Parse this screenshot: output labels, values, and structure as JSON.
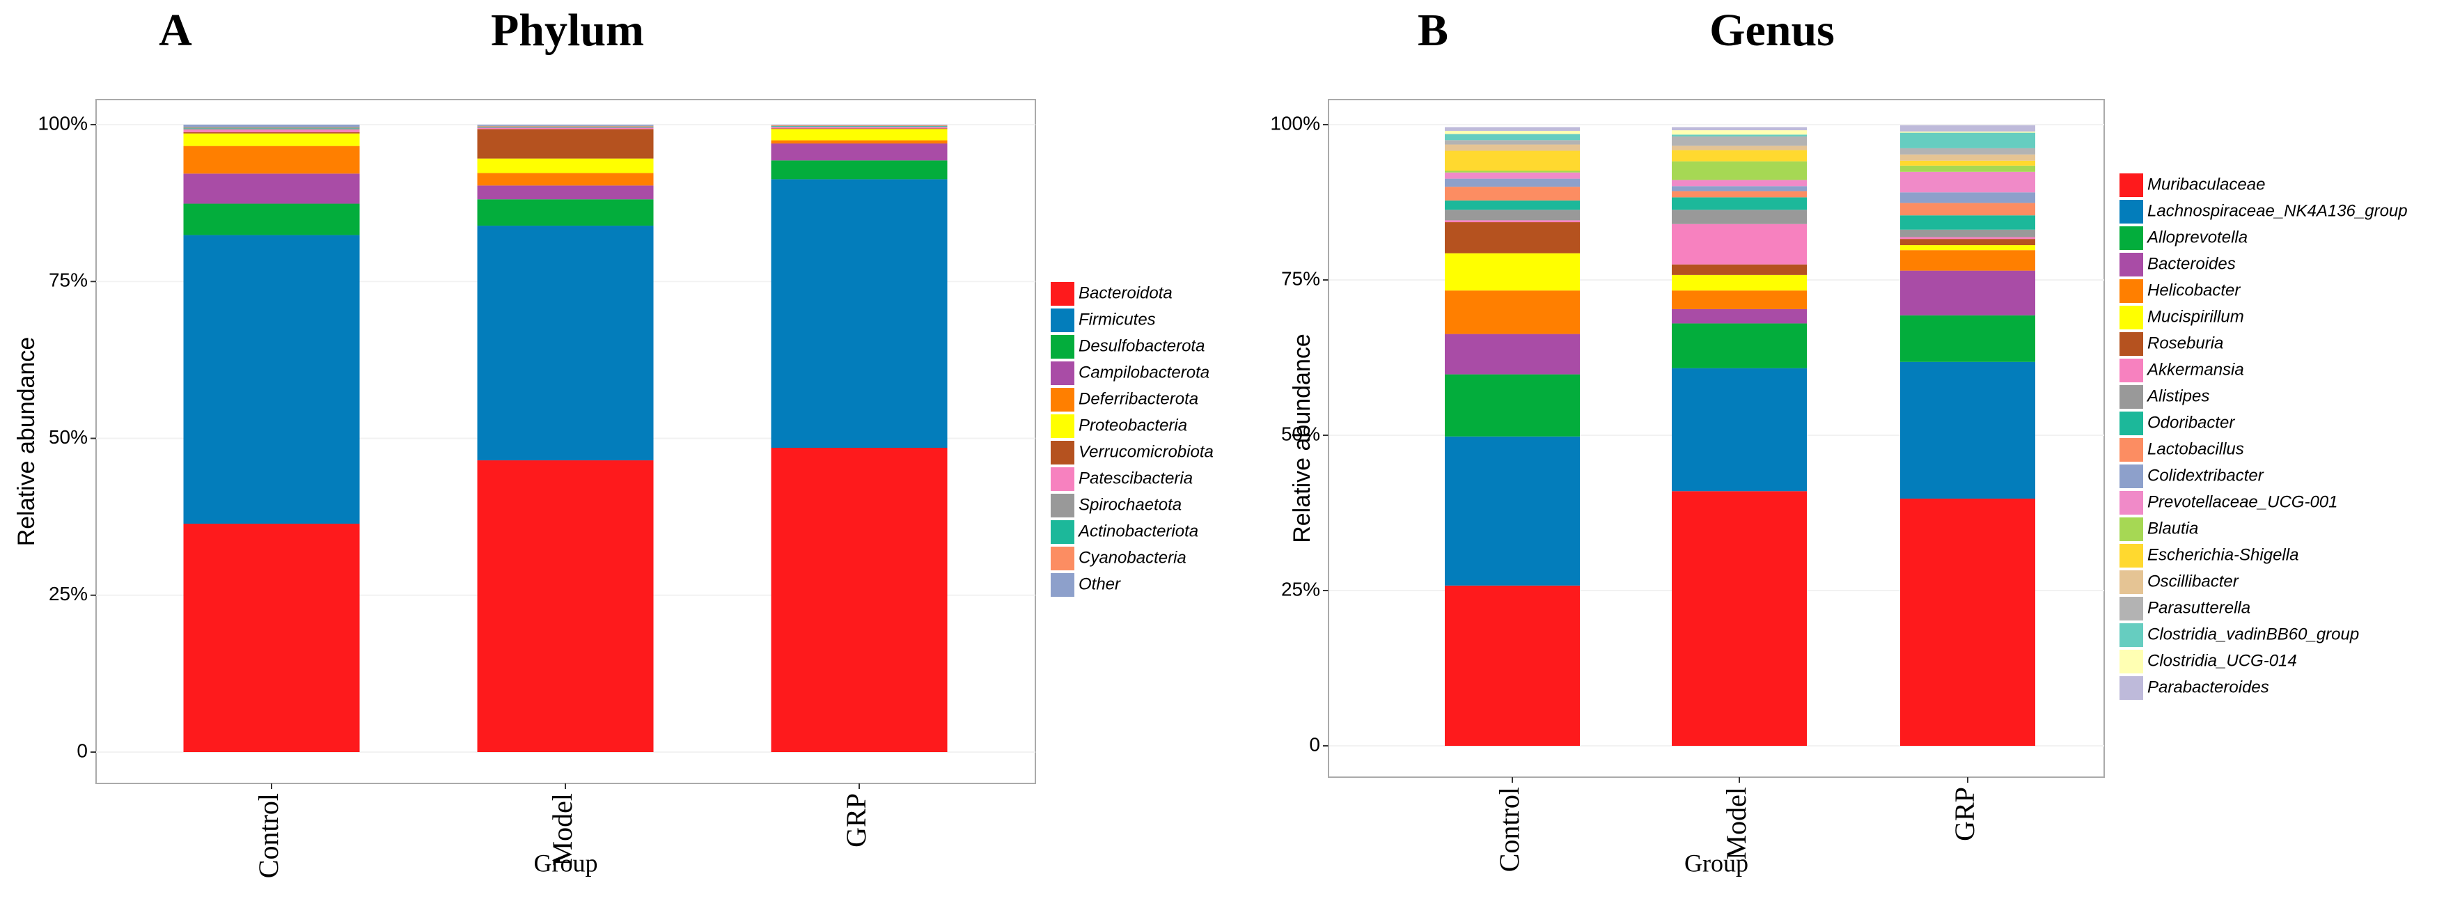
{
  "chart_data": [
    {
      "type": "bar",
      "stacked": true,
      "panel_label": "A",
      "title": "Phylum",
      "x_label": "Group",
      "y_label": "Relative abundance",
      "categories": [
        "Control",
        "Model",
        "GRP"
      ],
      "ylim": [
        0,
        100
      ],
      "yticks": [
        0,
        {
          "value": 25,
          "label": "25%"
        },
        {
          "value": 50,
          "label": "50%"
        },
        {
          "value": 75,
          "label": "75%"
        },
        {
          "value": 100,
          "label": "100%"
        }
      ],
      "series": [
        {
          "name": "Bacteroidota",
          "color": "#fe1a1c",
          "values": [
            36.4,
            46.5,
            48.5
          ]
        },
        {
          "name": "Firmicutes",
          "color": "#037dbb",
          "values": [
            46.0,
            37.4,
            42.8
          ]
        },
        {
          "name": "Desulfobacterota",
          "color": "#03ad3c",
          "values": [
            5.0,
            4.2,
            3.0
          ]
        },
        {
          "name": "Campilobacterota",
          "color": "#a94ca6",
          "values": [
            4.8,
            2.2,
            2.7
          ]
        },
        {
          "name": "Deferribacterota",
          "color": "#ff7f00",
          "values": [
            4.4,
            2.0,
            0.5
          ]
        },
        {
          "name": "Proteobacteria",
          "color": "#ffff00",
          "values": [
            2.0,
            2.3,
            1.8
          ]
        },
        {
          "name": "Verrucomicrobiota",
          "color": "#b5521f",
          "values": [
            0.2,
            4.7,
            0.1
          ]
        },
        {
          "name": "Patescibacteria",
          "color": "#f781bf",
          "values": [
            0.4,
            0.2,
            0.2
          ]
        },
        {
          "name": "Spirochaetota",
          "color": "#999999",
          "values": [
            0.2,
            0.1,
            0.1
          ]
        },
        {
          "name": "Actinobacteriota",
          "color": "#1cb89a",
          "values": [
            0.1,
            0.1,
            0.1
          ]
        },
        {
          "name": "Cyanobacteria",
          "color": "#fc8d62",
          "values": [
            0.1,
            0.1,
            0.1
          ]
        },
        {
          "name": "Other",
          "color": "#8da0cb",
          "values": [
            0.4,
            0.2,
            0.1
          ]
        }
      ]
    },
    {
      "type": "bar",
      "stacked": true,
      "panel_label": "B",
      "title": "Genus",
      "x_label": "Group",
      "y_label": "Relative abundance",
      "categories": [
        "Control",
        "Model",
        "GRP"
      ],
      "ylim": [
        0,
        100
      ],
      "yticks": [
        0,
        {
          "value": 25,
          "label": "25%"
        },
        {
          "value": 50,
          "label": "50%"
        },
        {
          "value": 75,
          "label": "75%"
        },
        {
          "value": 100,
          "label": "100%"
        }
      ],
      "series": [
        {
          "name": "Muribaculaceae",
          "color": "#fe1a1c",
          "values": [
            25.8,
            41.0,
            39.8
          ]
        },
        {
          "name": "Lachnospiraceae_NK4A136_group",
          "color": "#037dbb",
          "values": [
            24.0,
            19.8,
            22.0
          ]
        },
        {
          "name": "Alloprevotella",
          "color": "#03ad3c",
          "values": [
            10.0,
            7.2,
            7.5
          ]
        },
        {
          "name": "Bacteroides",
          "color": "#a94ca6",
          "values": [
            6.5,
            2.3,
            7.2
          ]
        },
        {
          "name": "Helicobacter",
          "color": "#ff7f00",
          "values": [
            7.0,
            3.0,
            3.3
          ]
        },
        {
          "name": "Mucispirillum",
          "color": "#ffff00",
          "values": [
            6.0,
            2.5,
            0.8
          ]
        },
        {
          "name": "Roseburia",
          "color": "#b5521f",
          "values": [
            5.0,
            1.7,
            1.0
          ]
        },
        {
          "name": "Akkermansia",
          "color": "#f781bf",
          "values": [
            0.3,
            6.5,
            0.3
          ]
        },
        {
          "name": "Alistipes",
          "color": "#999999",
          "values": [
            1.7,
            2.3,
            1.2
          ]
        },
        {
          "name": "Odoribacter",
          "color": "#1cb89a",
          "values": [
            1.5,
            2.0,
            2.3
          ]
        },
        {
          "name": "Lactobacillus",
          "color": "#fc8d62",
          "values": [
            2.2,
            1.0,
            2.0
          ]
        },
        {
          "name": "Colidextribacter",
          "color": "#8da0cb",
          "values": [
            1.3,
            0.8,
            1.7
          ]
        },
        {
          "name": "Prevotellaceae_UCG-001",
          "color": "#f08ac8",
          "values": [
            1.0,
            1.0,
            3.3
          ]
        },
        {
          "name": "Blautia",
          "color": "#a6d854",
          "values": [
            0.3,
            3.0,
            1.0
          ]
        },
        {
          "name": "Escherichia-Shigella",
          "color": "#ffd92f",
          "values": [
            3.2,
            1.8,
            0.8
          ]
        },
        {
          "name": "Oscillibacter",
          "color": "#e5c494",
          "values": [
            1.0,
            0.7,
            1.0
          ]
        },
        {
          "name": "Parasutterella",
          "color": "#b3b3b3",
          "values": [
            0.7,
            1.5,
            1.0
          ]
        },
        {
          "name": "Clostridia_vadinBB60_group",
          "color": "#66cdc0",
          "values": [
            1.0,
            0.3,
            2.5
          ]
        },
        {
          "name": "Clostridia_UCG-014",
          "color": "#ffffb3",
          "values": [
            0.5,
            0.7,
            0.2
          ]
        },
        {
          "name": "Parabacteroides",
          "color": "#bebada",
          "values": [
            0.6,
            0.5,
            1.0
          ]
        }
      ]
    }
  ]
}
